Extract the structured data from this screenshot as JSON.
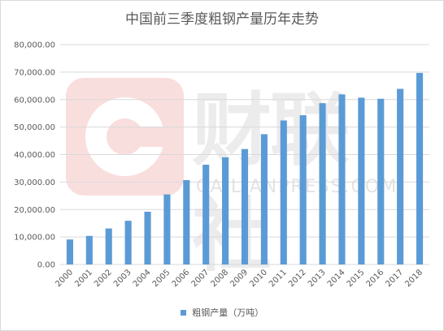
{
  "watermark": {
    "text": "财联社",
    "subtext": "CAILIANPRESS.COM"
  },
  "chart_data": {
    "type": "bar",
    "title": "中国前三季度粗钢产量历年走势",
    "xlabel": "",
    "ylabel": "",
    "ylim": [
      0,
      80000
    ],
    "yticks": [
      "0.00",
      "10,000.00",
      "20,000.00",
      "30,000.00",
      "40,000.00",
      "50,000.00",
      "60,000.00",
      "70,000.00",
      "80,000.00"
    ],
    "categories": [
      "2000",
      "2001",
      "2002",
      "2003",
      "2004",
      "2005",
      "2006",
      "2007",
      "2008",
      "2009",
      "2010",
      "2011",
      "2012",
      "2013",
      "2014",
      "2015",
      "2016",
      "2017",
      "2018"
    ],
    "series": [
      {
        "name": "粗钢产量（万吨）",
        "color": "#5b9bd5",
        "values": [
          9100,
          10400,
          13100,
          15900,
          19200,
          25500,
          30700,
          36300,
          39000,
          42000,
          47400,
          52400,
          54300,
          58700,
          61900,
          60700,
          60300,
          63900,
          69700
        ]
      }
    ],
    "grid": true,
    "legend": "bottom"
  }
}
